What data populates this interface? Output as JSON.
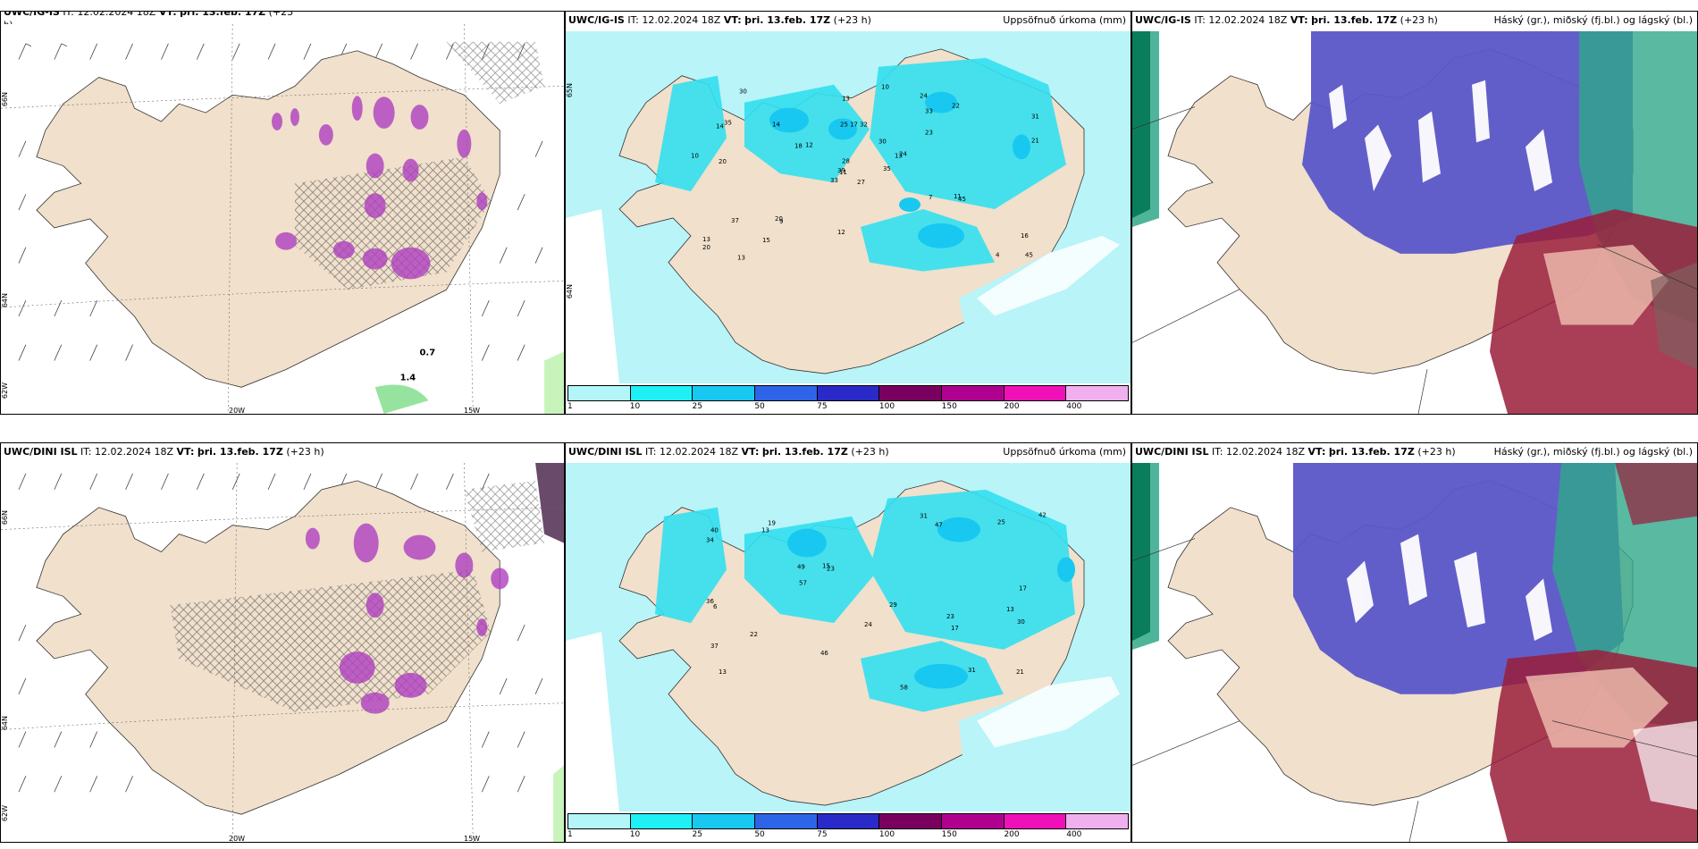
{
  "rows": [
    {
      "left": {
        "model": "UWC/IG-IS",
        "it_label": "IT:",
        "it_value": "12.02.2024 18Z",
        "vt_label": "VT:",
        "vt_value": "þri. 13.feb. 17Z",
        "lead": "(+23",
        "lead2": "h)",
        "lon_labels": [
          "20W",
          "15W"
        ],
        "lat_labels": [
          "66N",
          "64N",
          "62W"
        ],
        "values": [
          "0.7",
          "1.4"
        ]
      },
      "middle": {
        "model": "UWC/IG-IS",
        "it_label": "IT:",
        "it_value": "12.02.2024 18Z",
        "vt_label": "VT:",
        "vt_value": "þri. 13.feb. 17Z",
        "lead": "(+23 h)",
        "title_right": "Uppsöfnuð úrkoma (mm)",
        "lat_labels": [
          "65N",
          "64N"
        ]
      },
      "right": {
        "model": "UWC/IG-IS",
        "it_label": "IT:",
        "it_value": "12.02.2024 18Z",
        "vt_label": "VT:",
        "vt_value": "þri. 13.feb. 17Z",
        "lead": "(+23 h)",
        "title_right": "Háský (gr.), miðský (fj.bl.) og lágský (bl.)"
      }
    },
    {
      "left": {
        "model": "UWC/DINI ISL",
        "it_label": "IT:",
        "it_value": "12.02.2024 18Z",
        "vt_label": "VT:",
        "vt_value": "þri. 13.feb. 17Z",
        "lead": "(+23 h)",
        "lon_labels": [
          "20W",
          "15W"
        ],
        "lat_labels": [
          "66N",
          "64N",
          "62W"
        ]
      },
      "middle": {
        "model": "UWC/DINI ISL",
        "it_label": "IT:",
        "it_value": "12.02.2024 18Z",
        "vt_label": "VT:",
        "vt_value": "þri. 13.feb. 17Z",
        "lead": "(+23 h)",
        "title_right": "Uppsöfnuð úrkoma (mm)",
        "lat_labels": [
          "66N",
          "64N"
        ]
      },
      "right": {
        "model": "UWC/DINI ISL",
        "it_label": "IT:",
        "it_value": "12.02.2024 18Z",
        "vt_label": "VT:",
        "vt_value": "þri. 13.feb. 17Z",
        "lead": "(+23 h)",
        "title_right": "Háský (gr.), miðský (fj.bl.) og lágský (bl.)"
      }
    }
  ],
  "colorbar": {
    "ticks": [
      "1",
      "10",
      "25",
      "50",
      "75",
      "100",
      "150",
      "200",
      "400"
    ],
    "colors": [
      "#b3f5f9",
      "#1ff0f5",
      "#19c8f0",
      "#2e64e8",
      "#2a2ac8",
      "#7a0060",
      "#b00090",
      "#f010b8",
      "#f0b0f0"
    ]
  },
  "colors": {
    "land": "#f0e0cc",
    "sea_precip": "#b8f4f8",
    "precip_dark": "#33e0f0",
    "high_cloud": "#2fa88a",
    "mid_cloud": "#5a56c8",
    "low_cloud": "#9a1d3a",
    "snow_purple": "#b040c0"
  },
  "precip_labels_top": [
    "27",
    "14",
    "11",
    "13",
    "13",
    "9",
    "24",
    "32",
    "33",
    "35",
    "30",
    "45",
    "20",
    "31",
    "33",
    "23",
    "13",
    "25",
    "30",
    "37",
    "12",
    "20",
    "15",
    "17",
    "24",
    "45",
    "35",
    "13",
    "10",
    "7",
    "21",
    "39",
    "12",
    "28",
    "14",
    "22",
    "20",
    "4",
    "16",
    "11",
    "10",
    "18"
  ],
  "precip_labels_bottom": [
    "23",
    "13",
    "13",
    "19",
    "23",
    "31",
    "37",
    "47",
    "49",
    "58",
    "34",
    "36",
    "40",
    "21",
    "46",
    "17",
    "24",
    "29",
    "15",
    "22",
    "42",
    "25",
    "57",
    "30",
    "31",
    "13",
    "17",
    "6"
  ]
}
